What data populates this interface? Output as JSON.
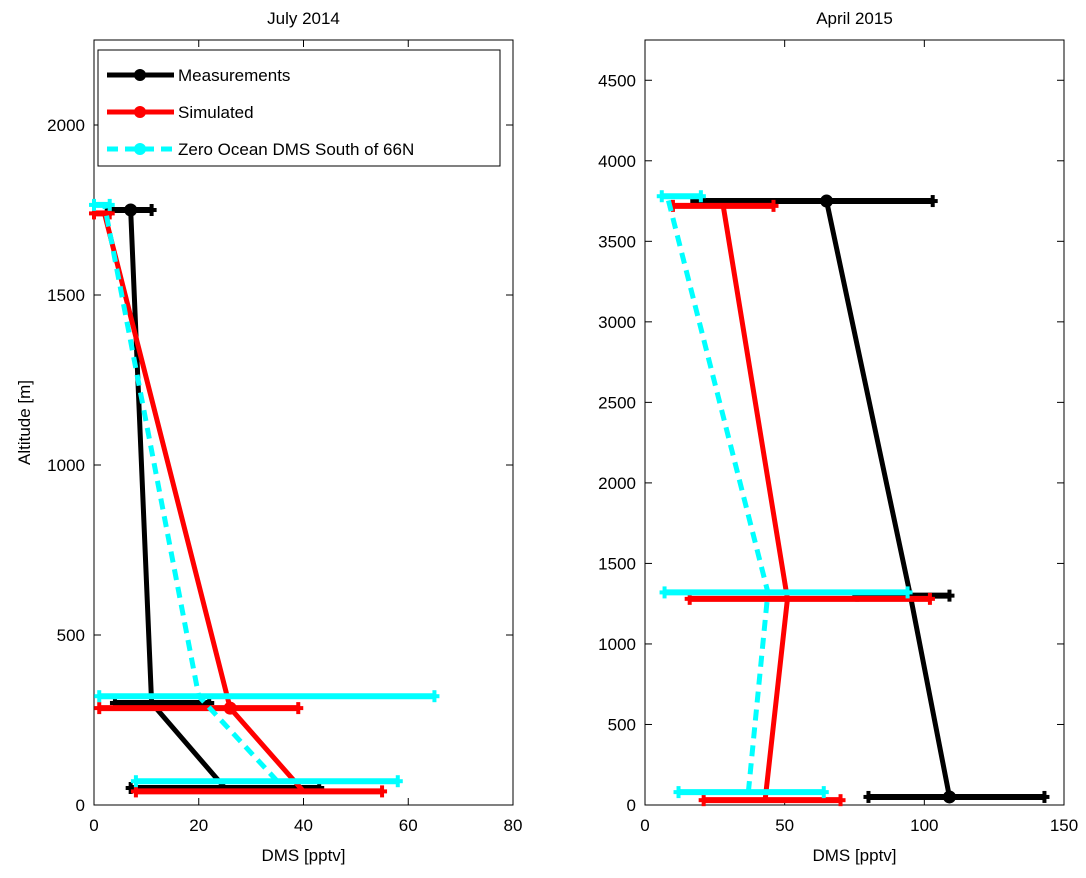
{
  "chart_data": [
    {
      "type": "line",
      "title": "July 2014",
      "xlabel": "DMS [pptv]",
      "ylabel": "Altitude [m]",
      "xlim": [
        0,
        80
      ],
      "ylim": [
        0,
        2250
      ],
      "xticks": [
        0,
        20,
        40,
        60,
        80
      ],
      "yticks": [
        0,
        500,
        1000,
        1500,
        2000
      ],
      "grid": false,
      "legend_position": "top-right",
      "series": [
        {
          "name": "Measurements",
          "color": "#000000",
          "dashed": false,
          "marker": "circle",
          "points": [
            {
              "x": 25,
              "y": 50,
              "xerr": [
                7,
                43
              ],
              "marker": false
            },
            {
              "x": 11,
              "y": 300,
              "xerr": [
                4,
                22
              ],
              "marker": false
            },
            {
              "x": 7,
              "y": 1750,
              "xerr": [
                3,
                11
              ],
              "marker": true
            }
          ]
        },
        {
          "name": "Simulated",
          "color": "#ff0000",
          "dashed": false,
          "marker": "circle",
          "points": [
            {
              "x": 40,
              "y": 40,
              "xerr": [
                8,
                55
              ],
              "marker": false
            },
            {
              "x": 26,
              "y": 285,
              "xerr": [
                1,
                39
              ],
              "marker": true
            },
            {
              "x": 2,
              "y": 1740,
              "xerr": [
                0,
                3
              ],
              "marker": false
            }
          ]
        },
        {
          "name": "Zero Ocean DMS South of 66N",
          "color": "#00ffff",
          "dashed": true,
          "marker": "circle",
          "points": [
            {
              "x": 35,
              "y": 70,
              "xerr": [
                8,
                58
              ],
              "marker": false
            },
            {
              "x": 20,
              "y": 320,
              "xerr": [
                1,
                65
              ],
              "marker": false
            },
            {
              "x": 2,
              "y": 1765,
              "xerr": [
                0,
                3
              ],
              "marker": false
            }
          ]
        }
      ]
    },
    {
      "type": "line",
      "title": "April 2015",
      "xlabel": "DMS [pptv]",
      "ylabel": "",
      "xlim": [
        0,
        150
      ],
      "ylim": [
        0,
        4750
      ],
      "xticks": [
        0,
        50,
        100,
        150
      ],
      "yticks": [
        0,
        500,
        1000,
        1500,
        2000,
        2500,
        3000,
        3500,
        4000,
        4500
      ],
      "grid": false,
      "legend_position": "none",
      "series": [
        {
          "name": "Measurements",
          "color": "#000000",
          "dashed": false,
          "marker": "circle",
          "points": [
            {
              "x": 109,
              "y": 50,
              "xerr": [
                80,
                143
              ],
              "marker": true
            },
            {
              "x": 95,
              "y": 1300,
              "xerr": [
                76,
                109
              ],
              "marker": false
            },
            {
              "x": 65,
              "y": 3750,
              "xerr": [
                18,
                103
              ],
              "marker": true
            }
          ]
        },
        {
          "name": "Simulated",
          "color": "#ff0000",
          "dashed": false,
          "marker": "circle",
          "points": [
            {
              "x": 43,
              "y": 30,
              "xerr": [
                21,
                70
              ],
              "marker": false
            },
            {
              "x": 51,
              "y": 1280,
              "xerr": [
                16,
                102
              ],
              "marker": false
            },
            {
              "x": 28,
              "y": 3720,
              "xerr": [
                10,
                46
              ],
              "marker": false
            }
          ]
        },
        {
          "name": "Zero Ocean DMS South of 66N",
          "color": "#00ffff",
          "dashed": true,
          "marker": "circle",
          "points": [
            {
              "x": 37,
              "y": 80,
              "xerr": [
                12,
                64
              ],
              "marker": false
            },
            {
              "x": 44,
              "y": 1320,
              "xerr": [
                7,
                94
              ],
              "marker": false
            },
            {
              "x": 8,
              "y": 3780,
              "xerr": [
                6,
                20
              ],
              "marker": false
            }
          ]
        }
      ]
    }
  ]
}
